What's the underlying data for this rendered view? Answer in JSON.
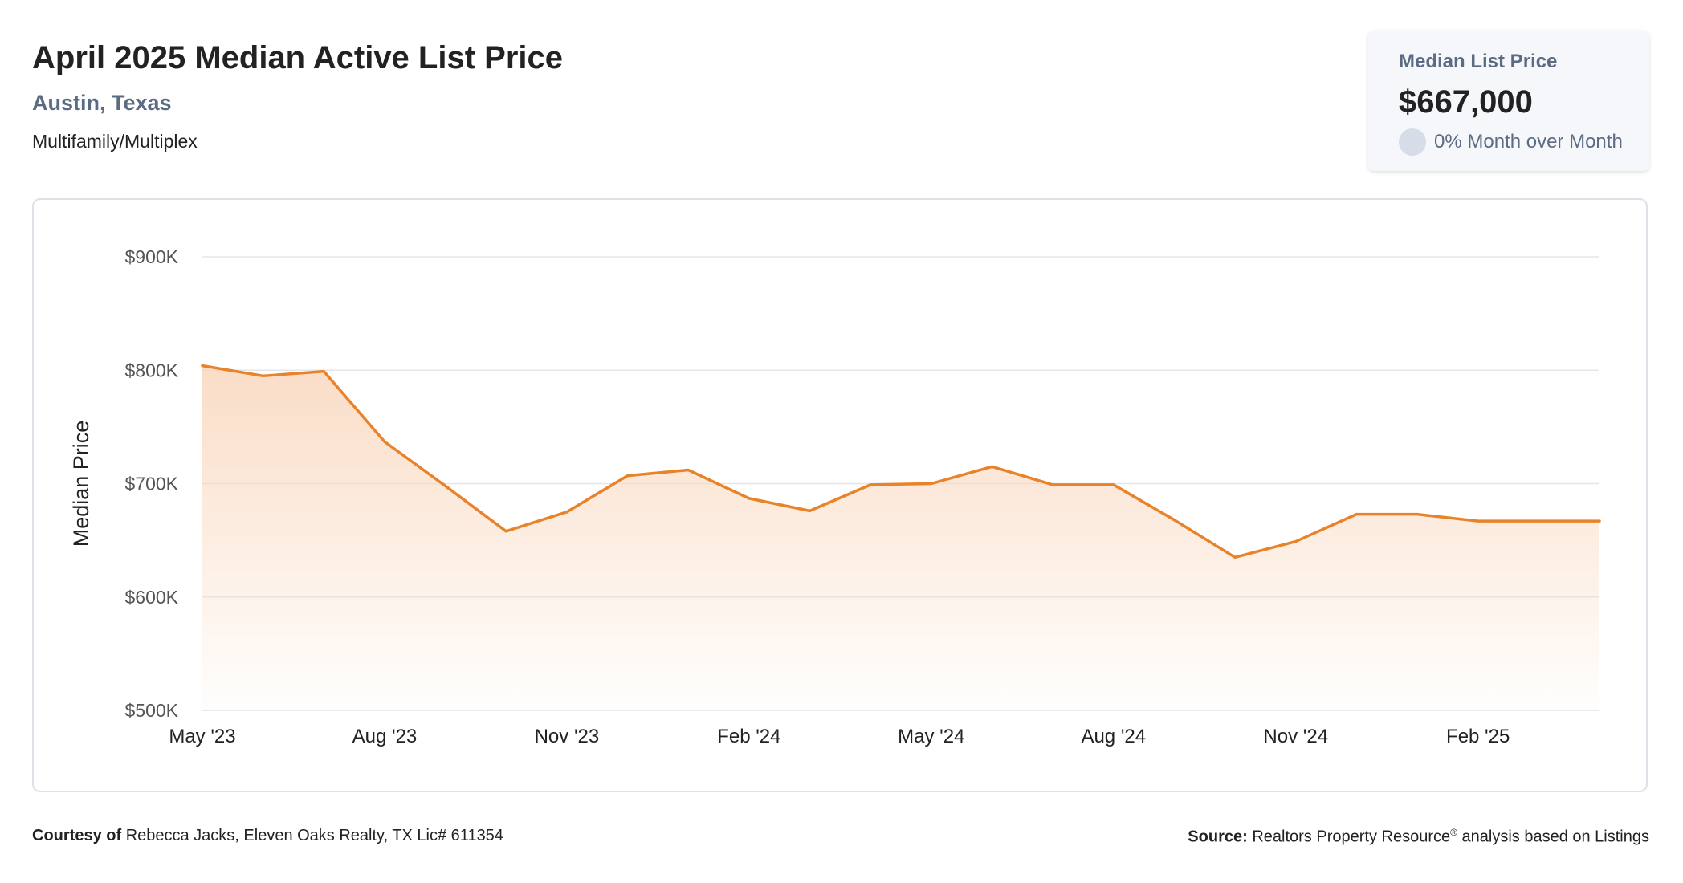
{
  "header": {
    "title": "April 2025 Median Active List Price",
    "location": "Austin, Texas",
    "property_type": "Multifamily/Multiplex"
  },
  "stat_card": {
    "label": "Median List Price",
    "value": "$667,000",
    "change": "0% Month over Month"
  },
  "footer": {
    "courtesy_label": "Courtesy of",
    "courtesy_text": "Rebecca Jacks, Eleven Oaks Realty, TX Lic# 611354",
    "source_label": "Source:",
    "source_text_1": "Realtors Property Resource",
    "source_sup": "®",
    "source_text_2": " analysis based on Listings"
  },
  "colors": {
    "line": "#e8832a",
    "fill_top": "#f9d7bd",
    "grid": "#e3e6eb",
    "axis_text": "#555555"
  },
  "chart_data": {
    "type": "area",
    "ylabel": "Median Price",
    "xlabel": "",
    "ylim": [
      500000,
      900000
    ],
    "yticks": [
      {
        "value": 900000,
        "label": "$900K"
      },
      {
        "value": 800000,
        "label": "$800K"
      },
      {
        "value": 700000,
        "label": "$700K"
      },
      {
        "value": 600000,
        "label": "$600K"
      },
      {
        "value": 500000,
        "label": "$500K"
      }
    ],
    "xticks": [
      {
        "index": 0,
        "label": "May '23"
      },
      {
        "index": 3,
        "label": "Aug '23"
      },
      {
        "index": 6,
        "label": "Nov '23"
      },
      {
        "index": 9,
        "label": "Feb '24"
      },
      {
        "index": 12,
        "label": "May '24"
      },
      {
        "index": 15,
        "label": "Aug '24"
      },
      {
        "index": 18,
        "label": "Nov '24"
      },
      {
        "index": 21,
        "label": "Feb '25"
      }
    ],
    "x": [
      "May '23",
      "Jun '23",
      "Jul '23",
      "Aug '23",
      "Sep '23",
      "Oct '23",
      "Nov '23",
      "Dec '23",
      "Jan '24",
      "Feb '24",
      "Mar '24",
      "Apr '24",
      "May '24",
      "Jun '24",
      "Jul '24",
      "Aug '24",
      "Sep '24",
      "Oct '24",
      "Nov '24",
      "Dec '24",
      "Jan '25",
      "Feb '25",
      "Mar '25",
      "Apr '25"
    ],
    "series": [
      {
        "values": [
          804000,
          795000,
          799000,
          737000,
          698000,
          658000,
          675000,
          707000,
          712000,
          687000,
          676000,
          699000,
          700000,
          715000,
          699000,
          699000,
          668000,
          635000,
          649000,
          673000,
          673000,
          667000,
          667000,
          667000
        ]
      }
    ],
    "grid": true
  }
}
